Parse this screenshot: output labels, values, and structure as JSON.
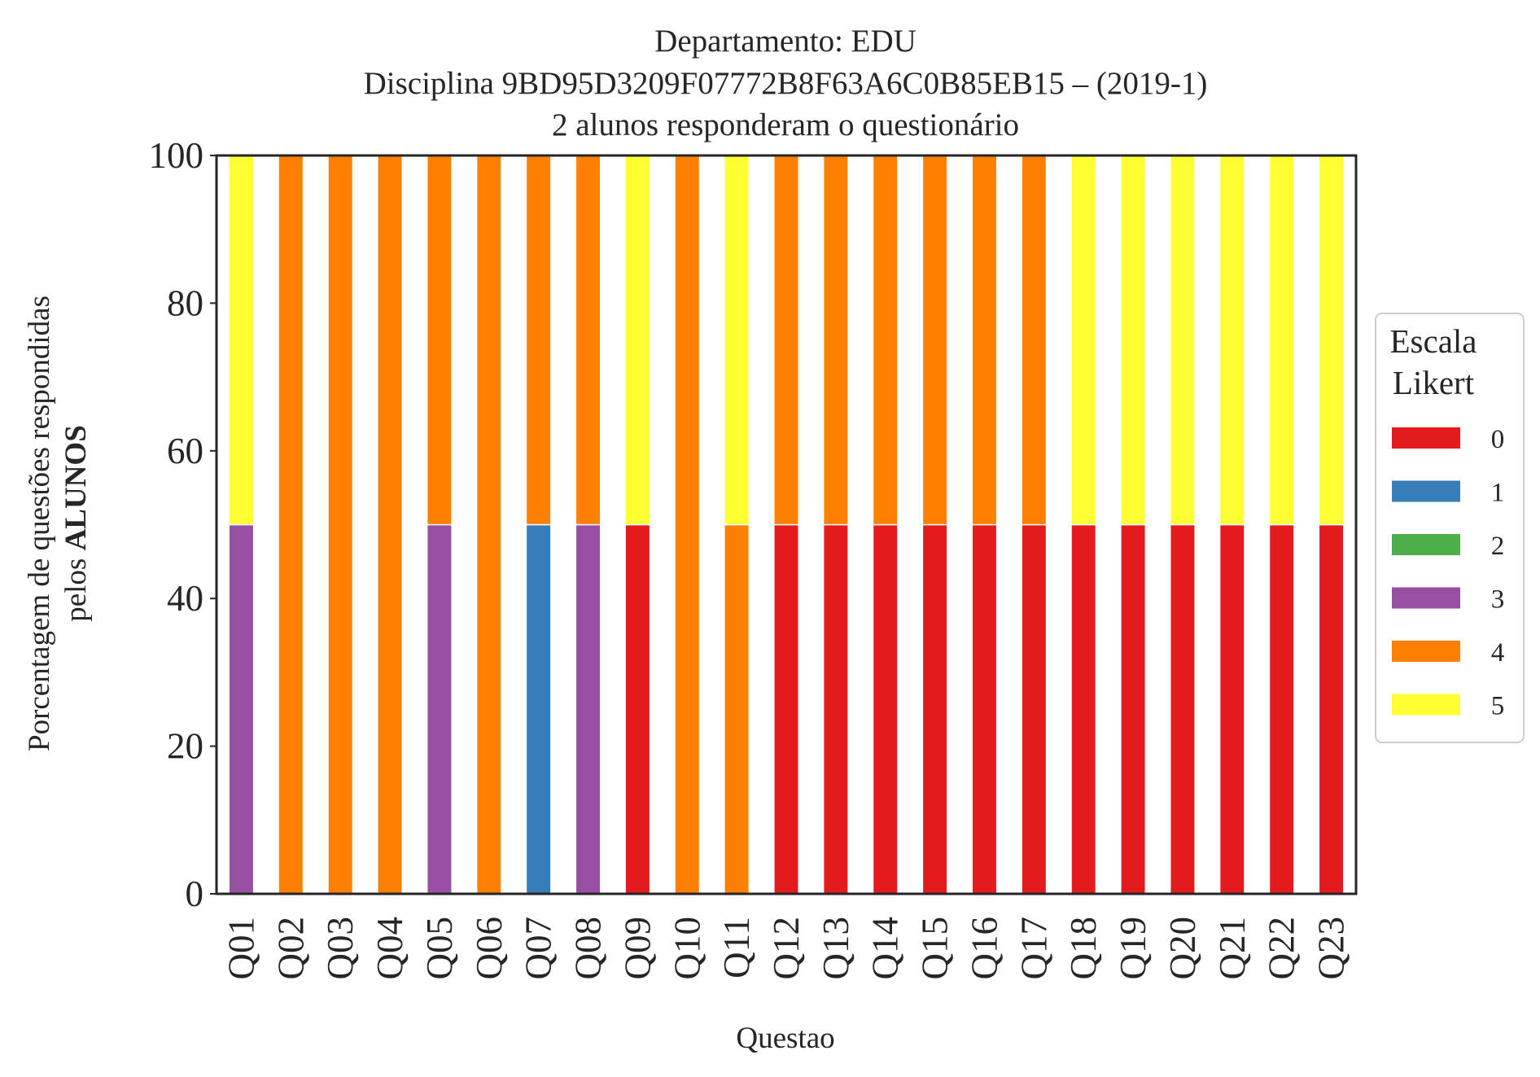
{
  "chart_data": {
    "type": "bar",
    "stacked": true,
    "title_lines": [
      "Departamento: EDU",
      "Disciplina 9BD95D3209F07772B8F63A6C0B85EB15 – (2019-1)",
      "2 alunos responderam o questionário"
    ],
    "xlabel": "Questao",
    "ylabel_line1": "Porcentagem de questões respondidas",
    "ylabel_line2_prefix": "pelos ",
    "ylabel_line2_bold": "ALUNOS",
    "ylim": [
      0,
      100
    ],
    "yticks": [
      0,
      20,
      40,
      60,
      80,
      100
    ],
    "grid": false,
    "legend": {
      "title_lines": [
        "Escala",
        "Likert"
      ],
      "placement": "right, outside plot",
      "labels": [
        "0",
        "1",
        "2",
        "3",
        "4",
        "5"
      ]
    },
    "colors": [
      "#e41a1c",
      "#377eb8",
      "#4daf4a",
      "#984ea3",
      "#ff7f00",
      "#ffff33"
    ],
    "categories": [
      "Q01",
      "Q02",
      "Q03",
      "Q04",
      "Q05",
      "Q06",
      "Q07",
      "Q08",
      "Q09",
      "Q10",
      "Q11",
      "Q12",
      "Q13",
      "Q14",
      "Q15",
      "Q16",
      "Q17",
      "Q18",
      "Q19",
      "Q20",
      "Q21",
      "Q22",
      "Q23"
    ],
    "series": [
      {
        "name": "0",
        "values": [
          0,
          0,
          0,
          0,
          0,
          0,
          0,
          0,
          50,
          0,
          0,
          50,
          50,
          50,
          50,
          50,
          50,
          50,
          50,
          50,
          50,
          50,
          50
        ]
      },
      {
        "name": "1",
        "values": [
          0,
          0,
          0,
          0,
          0,
          0,
          50,
          0,
          0,
          0,
          0,
          0,
          0,
          0,
          0,
          0,
          0,
          0,
          0,
          0,
          0,
          0,
          0
        ]
      },
      {
        "name": "2",
        "values": [
          0,
          0,
          0,
          0,
          0,
          0,
          0,
          0,
          0,
          0,
          0,
          0,
          0,
          0,
          0,
          0,
          0,
          0,
          0,
          0,
          0,
          0,
          0
        ]
      },
      {
        "name": "3",
        "values": [
          50,
          0,
          0,
          0,
          50,
          0,
          0,
          50,
          0,
          0,
          0,
          0,
          0,
          0,
          0,
          0,
          0,
          0,
          0,
          0,
          0,
          0,
          0
        ]
      },
      {
        "name": "4",
        "values": [
          0,
          100,
          100,
          100,
          50,
          100,
          50,
          50,
          0,
          100,
          50,
          50,
          50,
          50,
          50,
          50,
          50,
          0,
          0,
          0,
          0,
          0,
          0
        ]
      },
      {
        "name": "5",
        "values": [
          50,
          0,
          0,
          0,
          0,
          0,
          0,
          0,
          50,
          0,
          50,
          0,
          0,
          0,
          0,
          0,
          0,
          50,
          50,
          50,
          50,
          50,
          50
        ]
      }
    ]
  }
}
